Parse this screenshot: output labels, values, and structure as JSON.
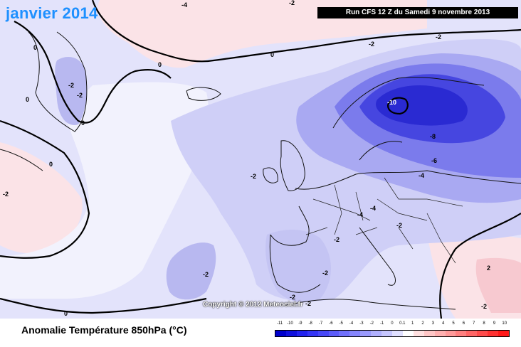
{
  "title": "janvier 2014",
  "run_info": "Run CFS 12 Z du Samedi 9 novembre 2013",
  "copyright": "Copyright © 2012 Meteociel.fr",
  "caption": "Anomalie Température 850hPa (°C)",
  "legend": {
    "ticks": [
      "-11",
      "-10",
      "-9",
      "-8",
      "-7",
      "-6",
      "-5",
      "-4",
      "-3",
      "-2",
      "-1",
      "0",
      "0.1",
      "1",
      "2",
      "3",
      "4",
      "5",
      "6",
      "7",
      "8",
      "9",
      "10"
    ],
    "colors": [
      "#0000cc",
      "#1010dd",
      "#2222ee",
      "#3535f5",
      "#4848f8",
      "#5c5cfa",
      "#7070fc",
      "#8585fd",
      "#9a9afd",
      "#b0b0fe",
      "#c6c6fe",
      "#e0e0ff",
      "#ffffff",
      "#ffe0e0",
      "#ffc6c6",
      "#ffb0b0",
      "#ff9a9a",
      "#ff8080",
      "#ff6666",
      "#ff4c4c",
      "#ff3232",
      "#ff1818"
    ]
  },
  "contour_labels": [
    {
      "text": "0",
      "pos": "tl"
    },
    {
      "text": "-2",
      "pos": "greenland-w"
    },
    {
      "text": "-2",
      "pos": "greenland-e"
    },
    {
      "text": "0",
      "pos": "greenland-s"
    },
    {
      "text": "0",
      "pos": "canada"
    },
    {
      "text": "-2",
      "pos": "canada-w"
    },
    {
      "text": "0",
      "pos": "atlantic-n"
    },
    {
      "text": "-2",
      "pos": "arctic"
    },
    {
      "text": "-2",
      "pos": "scand-n"
    },
    {
      "text": "-10",
      "pos": "scand-core"
    },
    {
      "text": "-8",
      "pos": "finland"
    },
    {
      "text": "-6",
      "pos": "baltic"
    },
    {
      "text": "-4",
      "pos": "poland"
    },
    {
      "text": "-2",
      "pos": "ireland"
    },
    {
      "text": "-4",
      "pos": "germany-w"
    },
    {
      "text": "-4",
      "pos": "germany"
    },
    {
      "text": "-2",
      "pos": "italy-n"
    },
    {
      "text": "-2",
      "pos": "france-s"
    },
    {
      "text": "-2",
      "pos": "spain"
    },
    {
      "text": "-2",
      "pos": "atlantic-s"
    },
    {
      "text": "-2",
      "pos": "med"
    },
    {
      "text": "-2",
      "pos": "africa-n"
    },
    {
      "text": "0",
      "pos": "africa-w"
    },
    {
      "text": "2",
      "pos": "east-med"
    },
    {
      "text": "-2",
      "pos": "ocean-sw"
    },
    {
      "text": "0",
      "pos": "bottom-left"
    },
    {
      "text": "-2",
      "pos": "bottom-c"
    },
    {
      "text": "-4",
      "pos": "greenland-top"
    },
    {
      "text": "0",
      "pos": "atlantic-c"
    }
  ]
}
